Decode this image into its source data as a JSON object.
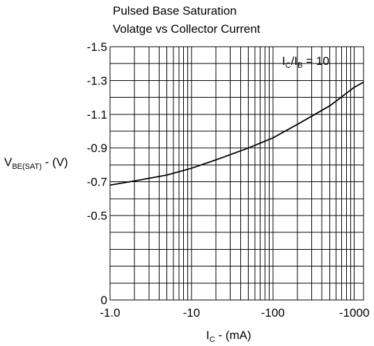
{
  "chart_data": {
    "type": "line",
    "title": [
      "Pulsed Base Saturation",
      "Volatge vs Collector Current"
    ],
    "xlabel": {
      "main": "I",
      "sub": "C",
      "rest": " - (mA)"
    },
    "ylabel": {
      "main": "V",
      "sub": "BE(SAT)",
      "rest": " - (V)"
    },
    "annotation": {
      "a": "I",
      "a_sub": "C",
      "slash": "/I",
      "b_sub": "B",
      "rest": " = 10"
    },
    "x_scale": "log",
    "xlim": [
      1,
      1300
    ],
    "ylim": [
      0,
      1.5
    ],
    "x_ticks": [
      {
        "value": 1,
        "label": "-1.0"
      },
      {
        "value": 10,
        "label": "-10"
      },
      {
        "value": 100,
        "label": "-100"
      },
      {
        "value": 1000,
        "label": "-1000"
      }
    ],
    "y_ticks": [
      {
        "value": 0,
        "label": "0"
      },
      {
        "value": 0.5,
        "label": "-0.5"
      },
      {
        "value": 0.7,
        "label": "-0.7"
      },
      {
        "value": 0.9,
        "label": "-0.9"
      },
      {
        "value": 1.1,
        "label": "-1.1"
      },
      {
        "value": 1.3,
        "label": "-1.3"
      },
      {
        "value": 1.5,
        "label": "-1.5"
      }
    ],
    "grid": true,
    "series": [
      {
        "x": [
          1,
          2,
          5,
          10,
          20,
          50,
          100,
          200,
          500,
          1000,
          1300
        ],
        "y": [
          0.68,
          0.705,
          0.74,
          0.78,
          0.83,
          0.9,
          0.96,
          1.04,
          1.15,
          1.26,
          1.29
        ]
      }
    ]
  }
}
